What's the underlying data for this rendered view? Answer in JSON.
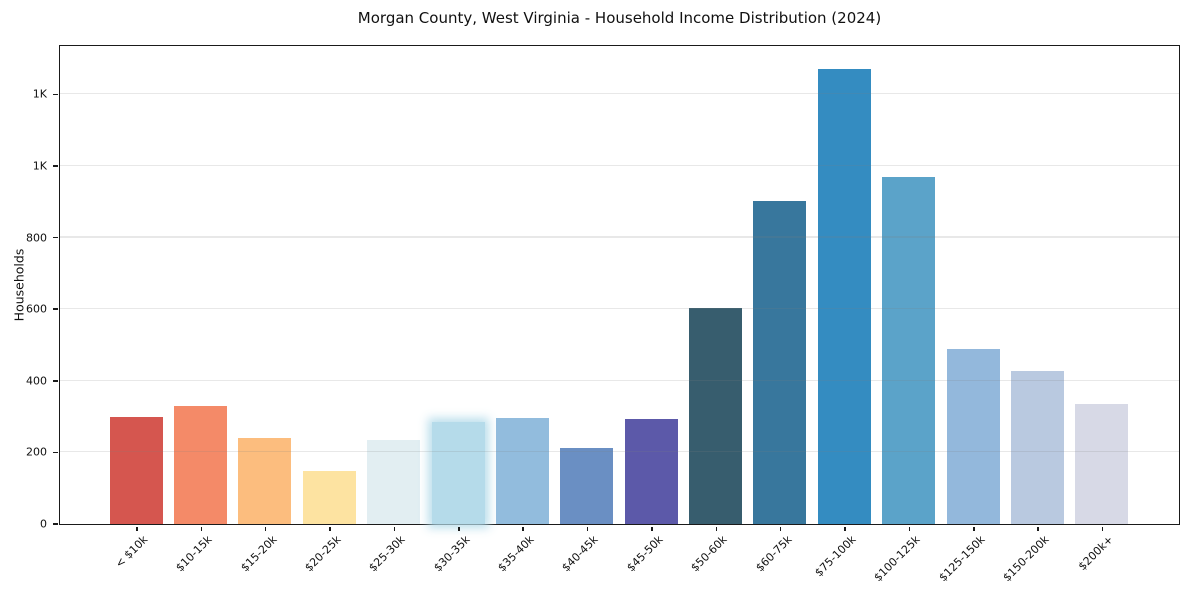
{
  "figure": {
    "title": "Morgan County, West Virginia - Household Income Distribution (2024)"
  },
  "chart_data": {
    "type": "bar",
    "title": "Morgan County, West Virginia - Household Income Distribution (2024)",
    "xlabel": "",
    "ylabel": "Households",
    "categories": [
      "< $10k",
      "$10-15k",
      "$15-20k",
      "$20-25k",
      "$25-30k",
      "$30-35k",
      "$35-40k",
      "$40-45k",
      "$45-50k",
      "$50-60k",
      "$60-75k",
      "$75-100k",
      "$100-125k",
      "$125-150k",
      "$150-200k",
      "$200k+"
    ],
    "values": [
      298,
      329,
      241,
      147,
      235,
      285,
      297,
      211,
      294,
      602,
      903,
      1272,
      970,
      488,
      426,
      336
    ],
    "bar_colors": [
      "#d5564f",
      "#f48a68",
      "#fcbd7e",
      "#fde3a1",
      "#e2eef2",
      "#b5dbea",
      "#92bcdd",
      "#6a8fc3",
      "#5c59a9",
      "#375d6e",
      "#38779d",
      "#348cc1",
      "#5ba3c9",
      "#93b8dc",
      "#b9c9e0",
      "#d7d9e6"
    ],
    "highlighted_category": "$30-35k",
    "highlight_index": 5,
    "ylim": [
      0,
      1335
    ],
    "ytick_positions": [
      0,
      200,
      400,
      600,
      800,
      1000,
      1200
    ],
    "ytick_labels": [
      "0",
      "200",
      "400",
      "600",
      "800",
      "1K",
      "1K"
    ],
    "grid": "horizontal",
    "legend": "none",
    "gridline_color": "#ececec",
    "spine_color": "#1a1a1a",
    "background_color": "#ffffff"
  }
}
